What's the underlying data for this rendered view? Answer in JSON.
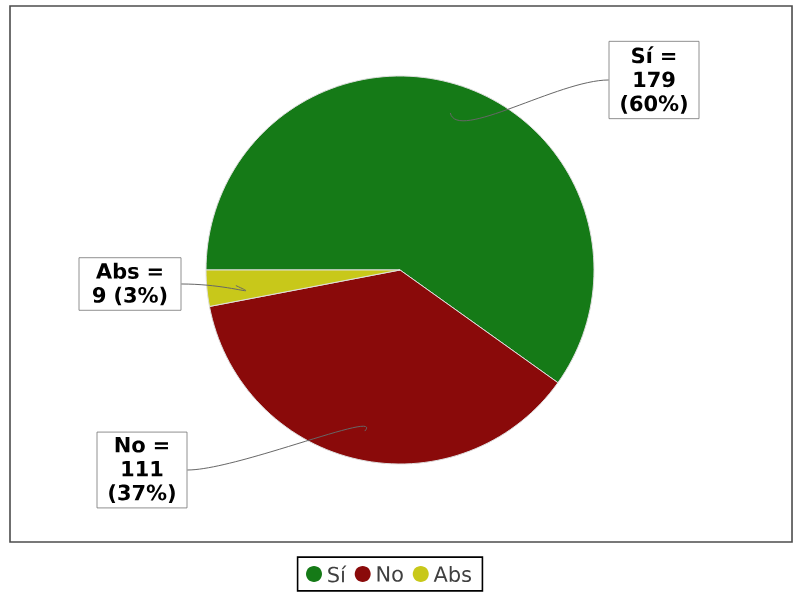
{
  "chart_data": {
    "type": "pie",
    "categories": [
      "Sí",
      "No",
      "Abs"
    ],
    "values": [
      179,
      111,
      9
    ],
    "colors": [
      "#157a17",
      "#8a0a0a",
      "#c8c81a"
    ],
    "value_labels": [
      "Sí = 179 (60%)",
      "No = 111 (37%)",
      "Abs = 9 (3%)"
    ],
    "legend": "bottom"
  }
}
